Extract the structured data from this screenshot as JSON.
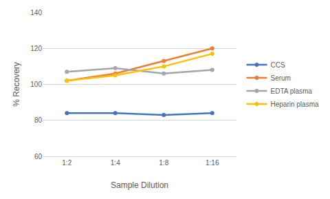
{
  "chart_data": {
    "type": "line",
    "x_label": "Sample Dilution",
    "y_label": "% Recovery",
    "categories": [
      "1:2",
      "1:4",
      "1:8",
      "1:16"
    ],
    "series": [
      {
        "name": "CCS",
        "color": "#4472c4",
        "values": [
          84,
          84,
          83,
          84
        ]
      },
      {
        "name": "Serum",
        "color": "#ed7d31",
        "values": [
          102,
          106,
          113,
          120
        ]
      },
      {
        "name": "EDTA plasma",
        "color": "#a5a5a5",
        "values": [
          107,
          109,
          106,
          108
        ]
      },
      {
        "name": "Heparin plasma",
        "color": "#ffc000",
        "values": [
          102,
          105,
          110,
          117
        ]
      }
    ],
    "ylim": [
      60,
      140
    ],
    "yticks": [
      60,
      80,
      100,
      120,
      140
    ],
    "grid": true,
    "legend": "right",
    "marker": "circle"
  }
}
